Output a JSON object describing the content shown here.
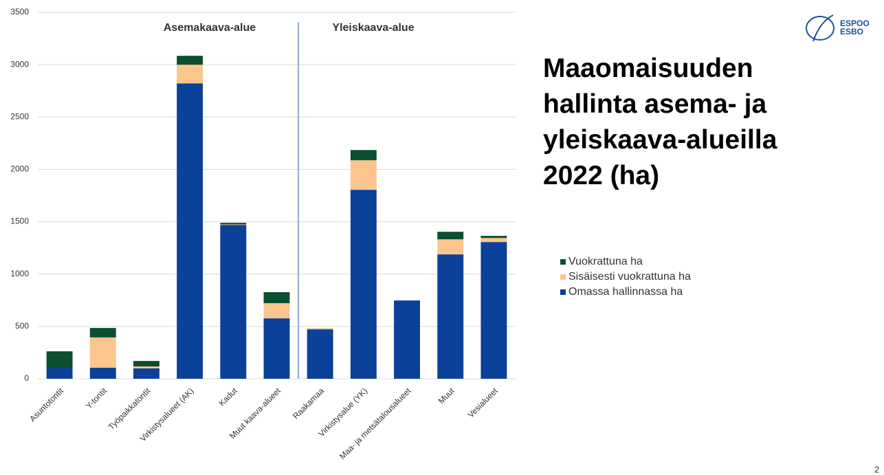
{
  "chart_data": {
    "type": "stacked_bar",
    "categories": [
      "Asuntotontit",
      "Y-tontit",
      "Työpaikkatontit",
      "Virkistysalueet (AK)",
      "Kadut",
      "Muut kaava-alueet",
      "Raakamaa",
      "Virkistysalue (YK)",
      "Maa- ja metsätalousalueet",
      "Muut",
      "Vesialueet"
    ],
    "series": [
      {
        "name": "Omassa hallinnassa ha",
        "color": "#0b4199",
        "values": [
          105,
          105,
          100,
          2822,
          1470,
          577,
          472,
          1805,
          748,
          1188,
          1306
        ]
      },
      {
        "name": "Sisäisesti vuokrattuna ha",
        "color": "#fcc58e",
        "values": [
          0,
          290,
          18,
          178,
          5,
          145,
          6,
          282,
          0,
          144,
          39
        ]
      },
      {
        "name": "Vuokrattuna ha",
        "color": "#0b4e30",
        "values": [
          157,
          90,
          52,
          85,
          15,
          105,
          2,
          98,
          0,
          72,
          20
        ]
      }
    ],
    "annotations": [
      "Asemakaava-alue",
      "Yleiskaava-alue"
    ],
    "ylim": [
      0,
      3500
    ],
    "yticks": [
      0,
      500,
      1000,
      1500,
      2000,
      2500,
      3000,
      3500
    ],
    "grid": true,
    "legend": "right"
  },
  "slide": {
    "title": "Maaomaisuuden hallinta asema- ja yleiskaava-alueilla 2022 (ha)",
    "logo": [
      "ESPOO",
      "ESBO"
    ],
    "page_number": "2"
  }
}
